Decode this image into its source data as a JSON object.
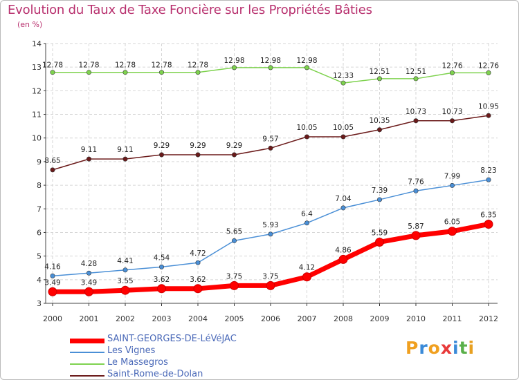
{
  "chart_data": {
    "type": "line",
    "title": "Evolution du Taux de Taxe Foncière sur les Propriétés Bâties",
    "subtitle": "(en %)",
    "xlabel": "",
    "ylabel": "",
    "x": [
      "2000",
      "2001",
      "2002",
      "2003",
      "2004",
      "2005",
      "2006",
      "2007",
      "2008",
      "2009",
      "2010",
      "2011",
      "2012"
    ],
    "ylim": [
      3,
      14
    ],
    "yticks": [
      3,
      4,
      5,
      6,
      7,
      8,
      9,
      10,
      11,
      12,
      13,
      14
    ],
    "grid": true,
    "legend_position": "bottom-left",
    "series": [
      {
        "name": "SAINT-GEORGES-DE-LéVéJAC",
        "color": "#ff0000",
        "values": [
          3.49,
          3.49,
          3.55,
          3.62,
          3.62,
          3.75,
          3.75,
          4.12,
          4.86,
          5.59,
          5.87,
          6.05,
          6.35
        ],
        "labels": [
          "3.49",
          "3.49",
          "3.55",
          "3.62",
          "3.62",
          "3.75",
          "3.75",
          "4.12",
          "4.86",
          "5.59",
          "5.87",
          "6.05",
          "6.35"
        ]
      },
      {
        "name": "Les Vignes",
        "color": "#4a8fd6",
        "values": [
          4.16,
          4.28,
          4.41,
          4.54,
          4.72,
          5.65,
          5.93,
          6.4,
          7.04,
          7.39,
          7.76,
          7.99,
          8.23
        ],
        "labels": [
          "4.16",
          "4.28",
          "4.41",
          "4.54",
          "4.72",
          "5.65",
          "5.93",
          "6.4",
          "7.04",
          "7.39",
          "7.76",
          "7.99",
          "8.23"
        ]
      },
      {
        "name": "Le Massegros",
        "color": "#7ed24e",
        "values": [
          12.78,
          12.78,
          12.78,
          12.78,
          12.78,
          12.98,
          12.98,
          12.98,
          12.33,
          12.51,
          12.51,
          12.76,
          12.76
        ],
        "labels": [
          "12.78",
          "12.78",
          "12.78",
          "12.78",
          "12.78",
          "12.98",
          "12.98",
          "12.98",
          "12.33",
          "12.51",
          "12.51",
          "12.76",
          "12.76"
        ]
      },
      {
        "name": "Saint-Rome-de-Dolan",
        "color": "#6b1a1a",
        "values": [
          8.65,
          9.11,
          9.11,
          9.29,
          9.29,
          9.29,
          9.57,
          10.05,
          10.05,
          10.35,
          10.73,
          10.73,
          10.95
        ],
        "labels": [
          "8.65",
          "9.11",
          "9.11",
          "9.29",
          "9.29",
          "9.29",
          "9.57",
          "10.05",
          "10.05",
          "10.35",
          "10.73",
          "10.73",
          "10.95"
        ]
      }
    ]
  },
  "branding": {
    "logo_letters": [
      "P",
      "r",
      "o",
      "x",
      "i",
      "t",
      "i"
    ],
    "logo_colors": [
      "#f0a020",
      "#3a8ad8",
      "#f0a020",
      "#e83a3a",
      "#3a8ad8",
      "#5ab04a",
      "#e8a020"
    ]
  }
}
